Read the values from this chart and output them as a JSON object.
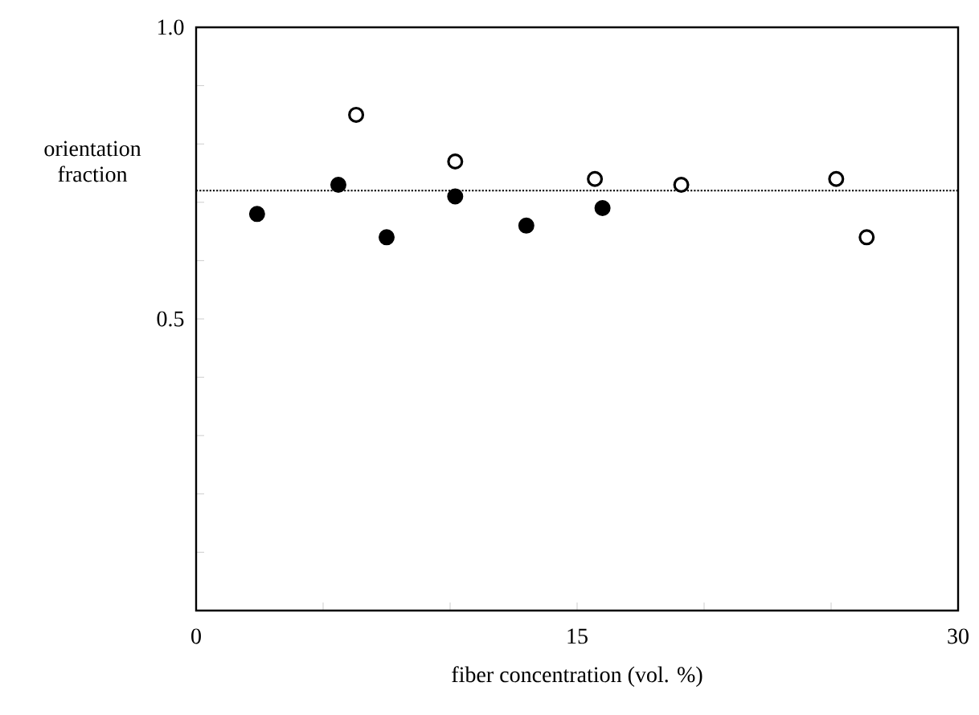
{
  "chart_data": {
    "type": "scatter",
    "xlabel": "fiber concentration (vol. %)",
    "ylabel": "orientation fraction",
    "xlim": [
      0,
      30
    ],
    "ylim": [
      0,
      1
    ],
    "xticks": [
      0,
      {
        "value": 5,
        "label": null
      },
      {
        "value": 10,
        "label": null
      },
      15,
      {
        "value": 20,
        "label": null
      },
      {
        "value": 25,
        "label": null
      },
      30
    ],
    "yticks": [
      {
        "value": 0,
        "label": null
      },
      {
        "value": 0.1,
        "label": null
      },
      {
        "value": 0.2,
        "label": null
      },
      {
        "value": 0.3,
        "label": null
      },
      {
        "value": 0.4,
        "label": null
      },
      0.5,
      {
        "value": 0.6,
        "label": null
      },
      {
        "value": 0.7,
        "label": null
      },
      {
        "value": 0.8,
        "label": null
      },
      {
        "value": 0.9,
        "label": null
      },
      {
        "value": 1.0,
        "label": "1.0"
      }
    ],
    "marker": "circle",
    "grid": false,
    "ref_lines": [
      {
        "axis": "y",
        "value": 0.72,
        "line_style": "dotted",
        "color": "#000000"
      }
    ],
    "series": [
      {
        "color": "#000000",
        "x": [
          2.4,
          5.6,
          7.5,
          10.2,
          13.0,
          16.0
        ],
        "values": [
          0.68,
          0.73,
          0.64,
          0.71,
          0.66,
          0.69
        ]
      },
      {
        "color": "#ffffff",
        "x": [
          6.3,
          10.2,
          15.7,
          19.1,
          25.2,
          26.4
        ],
        "values": [
          0.85,
          0.77,
          0.74,
          0.73,
          0.74,
          0.64
        ]
      }
    ]
  }
}
